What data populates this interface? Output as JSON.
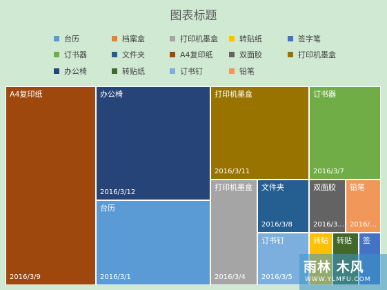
{
  "chart_data": {
    "type": "treemap",
    "title": "图表标题",
    "legend_position": "top",
    "legend": [
      {
        "name": "台历",
        "color": "#5b9bd5"
      },
      {
        "name": "档案盒",
        "color": "#ed7d31"
      },
      {
        "name": "打印机墨盒",
        "color": "#a5a5a5"
      },
      {
        "name": "转贴纸",
        "color": "#ffc000"
      },
      {
        "name": "签字笔",
        "color": "#4472c4"
      },
      {
        "name": "订书器",
        "color": "#70ad47"
      },
      {
        "name": "文件夹",
        "color": "#255e91"
      },
      {
        "name": "A4复印纸",
        "color": "#9e480e"
      },
      {
        "name": "双面胶",
        "color": "#636363"
      },
      {
        "name": "打印机墨盒",
        "color": "#997300"
      },
      {
        "name": "办公椅",
        "color": "#264478"
      },
      {
        "name": "转贴纸",
        "color": "#43682b"
      },
      {
        "name": "订书钉",
        "color": "#7cafdd"
      },
      {
        "name": "铅笔",
        "color": "#f1975a"
      }
    ],
    "tiles": [
      {
        "name": "A4复印纸",
        "date": "2016/3/9",
        "color": "#9e480e"
      },
      {
        "name": "办公椅",
        "date": "2016/3/12",
        "color": "#264478"
      },
      {
        "name": "台历",
        "date": "2016/3/1",
        "color": "#5b9bd5"
      },
      {
        "name": "打印机墨盒",
        "date": "2016/3/11",
        "color": "#997300"
      },
      {
        "name": "订书器",
        "date": "2016/3/7",
        "color": "#70ad47"
      },
      {
        "name": "打印机墨盒",
        "date": "2016/3/4",
        "color": "#a5a5a5"
      },
      {
        "name": "文件夹",
        "date": "2016/3/8",
        "color": "#255e91"
      },
      {
        "name": "订书钉",
        "date": "2016/3/5",
        "color": "#7cafdd"
      },
      {
        "name": "双面胶",
        "date": "2016/3…",
        "color": "#636363"
      },
      {
        "name": "铅笔",
        "date": "2016/…",
        "color": "#f1975a"
      },
      {
        "name": "转贴",
        "date": "",
        "color": "#ffc000"
      },
      {
        "name": "转贴",
        "date": "",
        "color": "#43682b"
      },
      {
        "name": "签",
        "date": "",
        "color": "#4472c4"
      }
    ]
  },
  "watermark": {
    "main": "雨林 木风",
    "url": "WWW.YLMFU.COM"
  }
}
